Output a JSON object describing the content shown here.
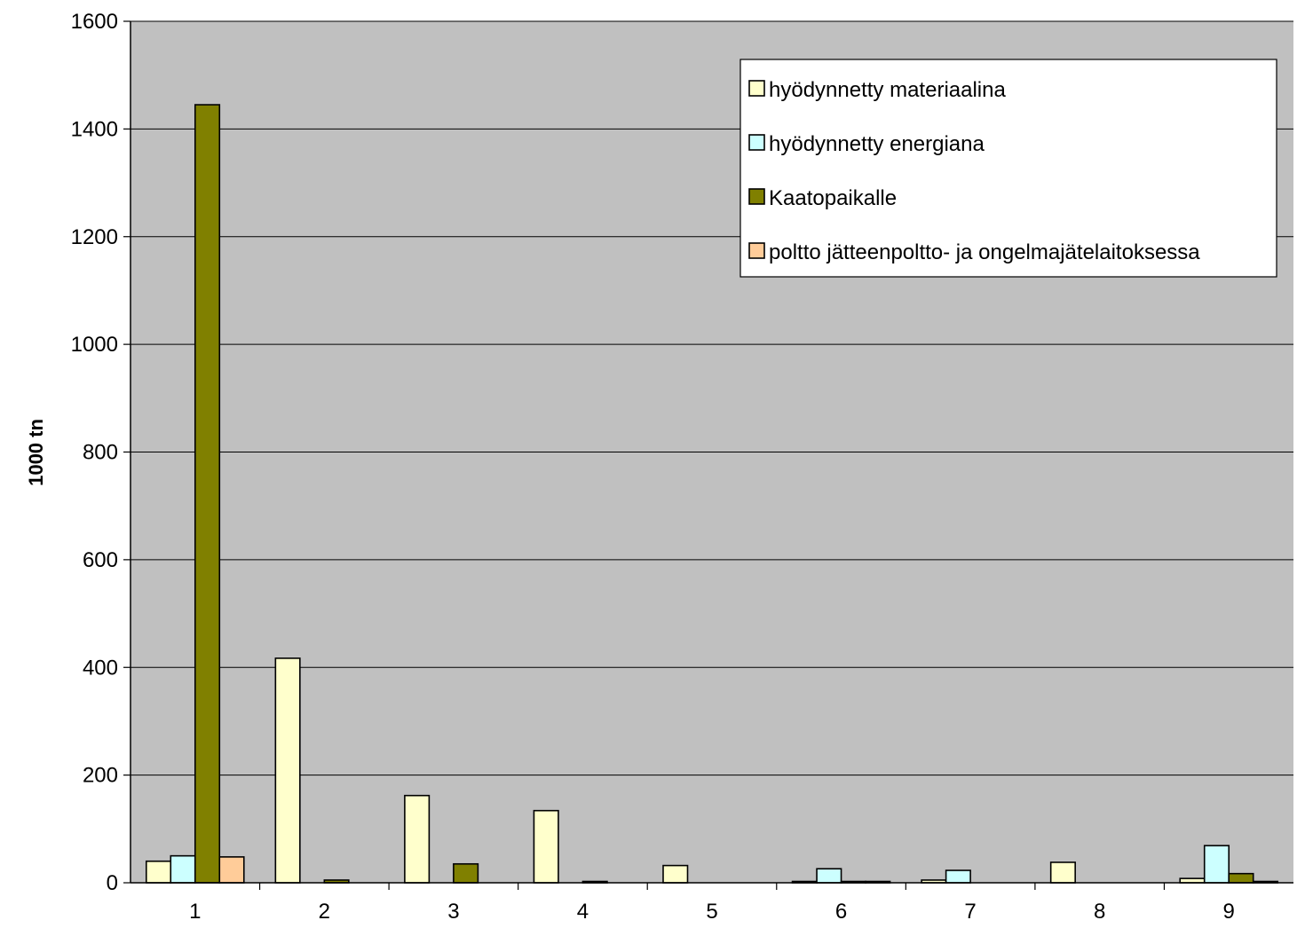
{
  "chart_data": {
    "type": "bar",
    "title": "",
    "xlabel": "",
    "ylabel": "1000 tn",
    "ylim": [
      0,
      1600
    ],
    "yticks": [
      0,
      200,
      400,
      600,
      800,
      1000,
      1200,
      1400,
      1600
    ],
    "grid": true,
    "legend_position": "top-right",
    "categories": [
      "1",
      "2",
      "3",
      "4",
      "5",
      "6",
      "7",
      "8",
      "9"
    ],
    "series": [
      {
        "name": "hyödynnetty materiaalina",
        "color": "#FFFFCC",
        "values": [
          40,
          417,
          162,
          134,
          32,
          1,
          5,
          38,
          8
        ]
      },
      {
        "name": "hyödynnetty energiana",
        "color": "#CCFFFF",
        "values": [
          50,
          0,
          0,
          0,
          0,
          26,
          23,
          0,
          69
        ]
      },
      {
        "name": "Kaatopaikalle",
        "color": "#808000",
        "values": [
          1445,
          5,
          35,
          2,
          0,
          2,
          0,
          0,
          17
        ]
      },
      {
        "name": "poltto jätteenpoltto- ja ongelmajätelaitoksessa",
        "color": "#FFCC99",
        "values": [
          48,
          0,
          0,
          0,
          0,
          2,
          0,
          0,
          2
        ]
      }
    ],
    "plot_background": "#C0C0C0"
  }
}
